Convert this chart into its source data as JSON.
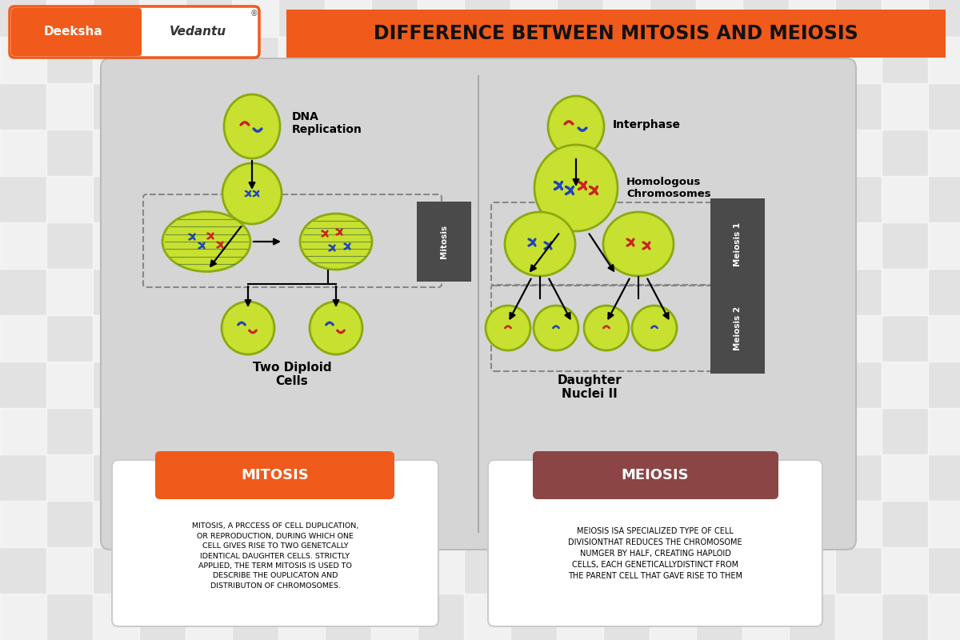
{
  "title": "DIFFERENCE BETWEEN MITOSIS AND MEIOSIS",
  "bg_color": "#e2e2e2",
  "panel_color": "#d5d5d5",
  "orange_color": "#f05a1a",
  "dark_red_color": "#8b4545",
  "cell_green": "#c8e030",
  "cell_green_edge": "#8aaa10",
  "chrom_blue": "#2244bb",
  "chrom_red": "#cc2222",
  "spindle_line": "#3a6a3a",
  "divider_color": "#aaaaaa",
  "dashed_color": "#888888",
  "label_color": "#4a4a4a",
  "mitosis_label": "MITOSIS",
  "meiosis_label": "MEIOSIS",
  "mitosis_desc": "MITOSIS, A PRCCESS OF CELL DUPLICATION,\nOR REPRODUCTION, DURING WHICH ONE\nCELL GIVES RISE TO TWO GENETCALLY\nIDENTICAL DAUGHTER CELLS. STRICTLY\nAPPLIED, THE TERM MITOSIS IS USED TO\nDESCRIBE THE OUPLICATON AND\nDISTRIBUTON OF CHROMOSOMES.",
  "meiosis_desc": "MEIOSIS ISA SPECIALIZED TYPE OF CELL\nDIVISIONTHAT REDUCES THE CHROMOSOME\nNUMGER BY HALF, CREATING HAPLOID\nCELLS, EACH GENETICALLYDISTINCT FROM\nTHE PARENT CELL THAT GAVE RISE TO THEM",
  "dna_label": "DNA\nReplication",
  "interphase_label": "Interphase",
  "homologous_label": "Homologous\nChromosomes",
  "two_diploid_label": "Two Diploid\nCells",
  "daughter_label": "Daughter\nNuclei II",
  "mitosis_side": "Mitosis",
  "meiosis1_side": "Meiosis 1",
  "meiosis2_side": "Meiosis 2",
  "white": "#ffffff",
  "black": "#111111"
}
